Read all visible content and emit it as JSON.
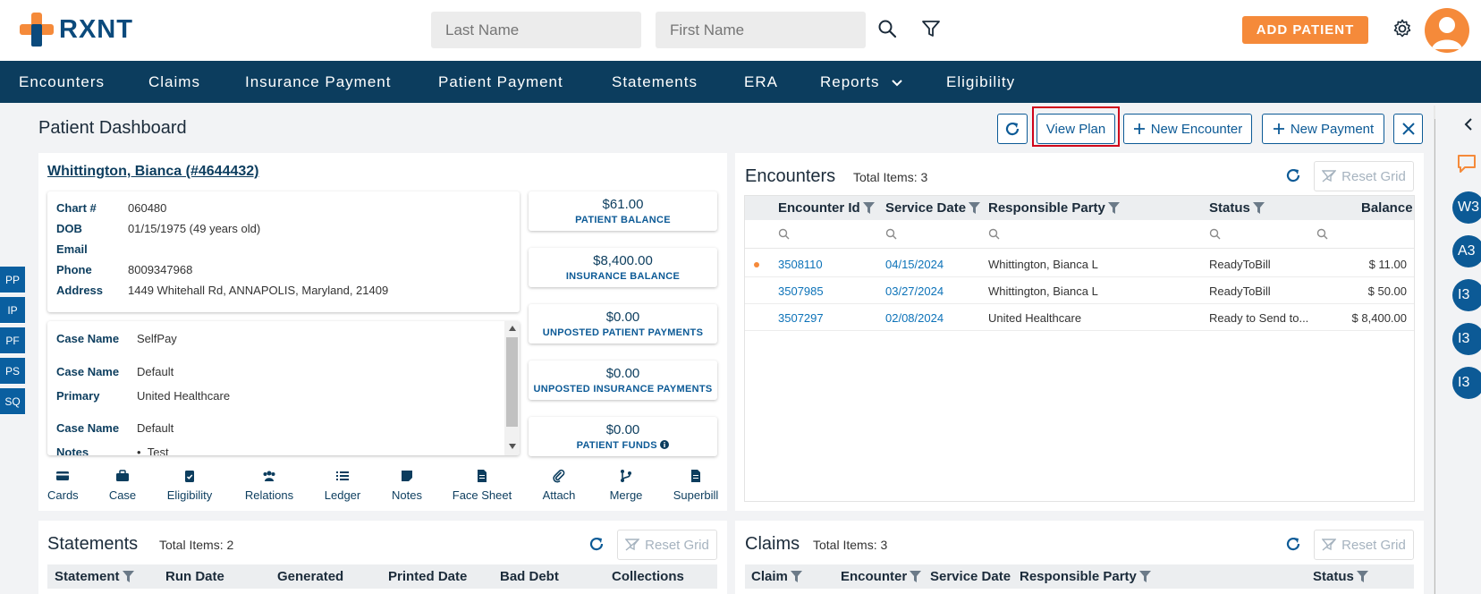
{
  "brand": {
    "name": "RXNT",
    "accent": "#f58a3a",
    "primary": "#0c3d5e"
  },
  "header": {
    "last_name_placeholder": "Last Name",
    "first_name_placeholder": "First Name",
    "add_patient_label": "ADD PATIENT",
    "icons": [
      "search-icon",
      "filter-icon",
      "gear-icon",
      "avatar"
    ]
  },
  "nav": {
    "items": [
      "Encounters",
      "Claims",
      "Insurance Payment",
      "Patient Payment",
      "Statements",
      "ERA",
      "Reports",
      "Eligibility"
    ]
  },
  "side_tabs": [
    "PP",
    "IP",
    "PF",
    "PS",
    "SQ"
  ],
  "rail_badges": [
    "W3",
    "A3",
    "I3",
    "I3",
    "I3"
  ],
  "dashboard": {
    "title": "Patient Dashboard",
    "view_plan": "View Plan",
    "new_encounter": "New Encounter",
    "new_payment": "New Payment"
  },
  "patient": {
    "name_link": "Whittington, Bianca (#4644432)",
    "labels": {
      "chart": "Chart #",
      "dob": "DOB",
      "email": "Email",
      "phone": "Phone",
      "address": "Address"
    },
    "chart": "060480",
    "dob": "01/15/1975 (49 years old)",
    "email": "",
    "phone": "8009347968",
    "address": "1449 Whitehall Rd, ANNAPOLIS, Maryland, 21409"
  },
  "cases": {
    "labels": {
      "case_name": "Case Name",
      "primary": "Primary",
      "notes": "Notes"
    },
    "case1": "SelfPay",
    "case2": "Default",
    "primary": "United Healthcare",
    "case3": "Default",
    "note": "Test"
  },
  "balances": [
    {
      "amount": "$61.00",
      "label": "PATIENT BALANCE"
    },
    {
      "amount": "$8,400.00",
      "label": "INSURANCE BALANCE"
    },
    {
      "amount": "$0.00",
      "label": "UNPOSTED PATIENT PAYMENTS"
    },
    {
      "amount": "$0.00",
      "label": "UNPOSTED INSURANCE PAYMENTS"
    },
    {
      "amount": "$0.00",
      "label": "PATIENT FUNDS"
    }
  ],
  "actions": [
    "Cards",
    "Case",
    "Eligibility",
    "Relations",
    "Ledger",
    "Notes",
    "Face Sheet",
    "Attach",
    "Merge",
    "Superbill"
  ],
  "encounters": {
    "title": "Encounters",
    "count": "Total Items: 3",
    "reset": "Reset Grid",
    "columns": [
      "Encounter Id",
      "Service Date",
      "Responsible Party",
      "Status",
      "Balance"
    ],
    "rows": [
      {
        "id": "3508110",
        "date": "04/15/2024",
        "party": "Whittington, Bianca L",
        "status": "ReadyToBill",
        "balance": "$ 11.00"
      },
      {
        "id": "3507985",
        "date": "03/27/2024",
        "party": "Whittington, Bianca L",
        "status": "ReadyToBill",
        "balance": "$ 50.00"
      },
      {
        "id": "3507297",
        "date": "02/08/2024",
        "party": "United Healthcare",
        "status": "Ready to Send to...",
        "balance": "$ 8,400.00"
      }
    ]
  },
  "statements": {
    "title": "Statements",
    "count": "Total Items: 2",
    "reset": "Reset Grid",
    "columns": [
      "Statement",
      "Run Date",
      "Generated",
      "Printed Date",
      "Bad Debt",
      "Collections"
    ]
  },
  "claims": {
    "title": "Claims",
    "count": "Total Items: 3",
    "reset": "Reset Grid",
    "columns": [
      "Claim",
      "Encounter",
      "Service Date",
      "Responsible Party",
      "Status"
    ]
  }
}
